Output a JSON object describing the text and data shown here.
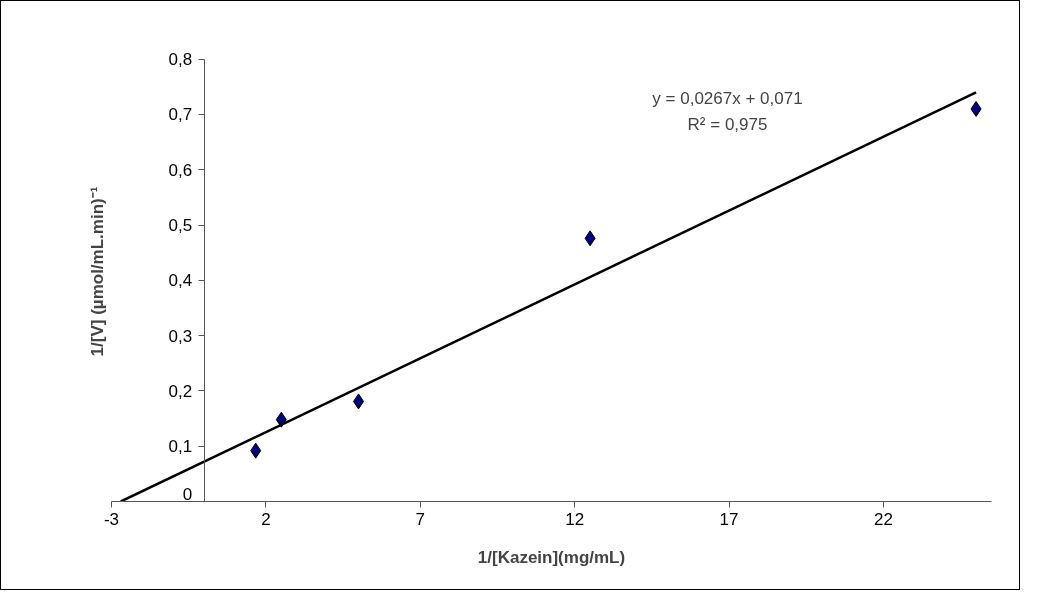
{
  "chart_data": {
    "type": "scatter",
    "xlabel": "1/[Kazein](mg/mL)",
    "ylabel": "1/[V] (µmol/mL.min)⁻¹",
    "series": [
      {
        "color": "#000080",
        "x": [
          1.67,
          2.5,
          5,
          12.5,
          25
        ],
        "values": [
          0.092,
          0.148,
          0.181,
          0.476,
          0.71
        ],
        "marker": "diamond"
      },
      {
        "type": "line",
        "color": "#000000",
        "x": [
          -2.7,
          25
        ],
        "values": [
          0,
          0.74
        ],
        "line_style": "solid"
      }
    ],
    "xlim": [
      -3,
      25.5
    ],
    "ylim": [
      0,
      0.8
    ],
    "xticks": [
      {
        "value": -3,
        "label": "-3"
      },
      {
        "value": 2,
        "label": "2"
      },
      {
        "value": 7,
        "label": "7"
      },
      {
        "value": 12,
        "label": "12"
      },
      {
        "value": 17,
        "label": "17"
      },
      {
        "value": 22,
        "label": "22"
      }
    ],
    "yticks": [
      {
        "value": 0,
        "label": "0"
      },
      {
        "value": 0.1,
        "label": "0,1"
      },
      {
        "value": 0.2,
        "label": "0,2"
      },
      {
        "value": 0.3,
        "label": "0,3"
      },
      {
        "value": 0.4,
        "label": "0,4"
      },
      {
        "value": 0.5,
        "label": "0,5"
      },
      {
        "value": 0.6,
        "label": "0,6"
      },
      {
        "value": 0.7,
        "label": "0,7"
      },
      {
        "value": 0.8,
        "label": "0,8"
      }
    ],
    "annotations": [
      "y = 0,0267x + 0,071",
      "R² = 0,975"
    ],
    "grid": false
  }
}
